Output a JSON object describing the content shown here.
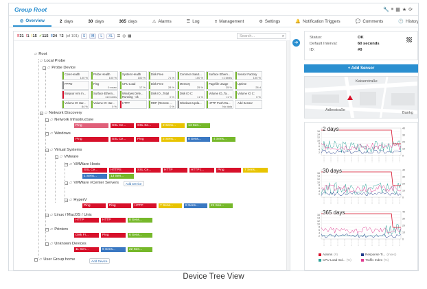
{
  "header": {
    "title": "Group Root",
    "icons": [
      "wrench-icon",
      "pause-icon",
      "grid-icon",
      "star-icon",
      "refresh-icon"
    ]
  },
  "tabs": [
    {
      "key": "overview",
      "label": "Overview",
      "icon": "globe-icon",
      "active": true
    },
    {
      "key": "2days",
      "num": "2",
      "label": "days"
    },
    {
      "key": "30days",
      "num": "30",
      "label": "days"
    },
    {
      "key": "365days",
      "num": "365",
      "label": "days"
    },
    {
      "key": "alarms",
      "label": "Alarms",
      "icon": "alarm-icon"
    },
    {
      "key": "log",
      "label": "Log",
      "icon": "log-icon"
    },
    {
      "key": "management",
      "label": "Management",
      "icon": "sliders-icon"
    },
    {
      "key": "settings",
      "label": "Settings",
      "icon": "gear-icon"
    },
    {
      "key": "notifications",
      "label": "Notification Triggers",
      "icon": "bell-icon"
    },
    {
      "key": "comments",
      "label": "Comments",
      "icon": "comment-icon"
    },
    {
      "key": "history",
      "label": "History",
      "icon": "history-icon"
    }
  ],
  "toolbar": {
    "counts": [
      {
        "value": "31",
        "color": "#d7102a",
        "mark": "‼"
      },
      {
        "value": "1",
        "color": "#e0607a",
        "mark": "!"
      },
      {
        "value": "15",
        "color": "#e8c400",
        "mark": "!"
      },
      {
        "value": "115",
        "color": "#76b82a",
        "mark": "✓"
      },
      {
        "value": "24",
        "color": "#3a78c2",
        "mark": "‼"
      },
      {
        "value": "2",
        "color": "#888888",
        "mark": "?"
      }
    ],
    "total": "(of 191)",
    "sizes": [
      "S",
      "M",
      "L",
      "XL"
    ],
    "search_placeholder": "Search..."
  },
  "tree": {
    "root": "Root",
    "local_probe": "Local Probe",
    "probe_device": "Probe Device",
    "tiles": [
      {
        "name": "Core Health",
        "value": "100 %",
        "status": "ok"
      },
      {
        "name": "Probe Health",
        "value": "100 %",
        "status": "ok"
      },
      {
        "name": "System Health",
        "value": "100 %",
        "status": "ok"
      },
      {
        "name": "Disk Free",
        "value": "71 %",
        "status": "ok"
      },
      {
        "name": "Common SaaS...",
        "value": "100 %",
        "status": "ok"
      },
      {
        "name": "Surface Ethern...",
        "value": "<1 kbit/s",
        "status": "ok"
      },
      {
        "name": "Sensor Factory",
        "value": "100 %",
        "status": "ok"
      },
      {
        "name": "PPPD",
        "value": "",
        "status": "unk"
      },
      {
        "name": "Ping",
        "value": "0 msec",
        "status": "ok"
      },
      {
        "name": "CPU Load",
        "value": "17 %",
        "status": "ok"
      },
      {
        "name": "Disk Free",
        "value": "28 %",
        "status": "ok"
      },
      {
        "name": "Memory",
        "value": "25 %",
        "status": "ok"
      },
      {
        "name": "Pagefile Usage",
        "value": "25 %",
        "status": "ok"
      },
      {
        "name": "Uptime",
        "value": "28 d",
        "status": "ok"
      },
      {
        "name": "Bonjour Arm In...",
        "value": "",
        "status": "bad"
      },
      {
        "name": "Surface Ethern...",
        "value": "110 kbit/s",
        "status": "ok"
      },
      {
        "name": "Windows Defe... Running - ok",
        "value": "",
        "status": "ok"
      },
      {
        "name": "Disk IO _Total",
        "value": "0 %",
        "status": "ok"
      },
      {
        "name": "Disk IO C:",
        "value": "<1 %",
        "status": "ok"
      },
      {
        "name": "Volume IO_Ta...",
        "value": "<1 %",
        "status": "ok"
      },
      {
        "name": "Volume IO C:",
        "value": "0 %",
        "status": "ok"
      },
      {
        "name": "Volume IO Har...",
        "value": "84 %",
        "status": "ok"
      },
      {
        "name": "Volume IO Har...",
        "value": "0 %",
        "status": "ok"
      },
      {
        "name": "HTTP",
        "value": "",
        "status": "bad"
      },
      {
        "name": "RDP (Remote ...",
        "value": "0 %",
        "status": "ok"
      },
      {
        "name": "Windows Upda...",
        "value": "",
        "status": "unk"
      },
      {
        "name": "HTTP Push Da...",
        "value": "No data",
        "status": "ok"
      },
      {
        "name": "Add Sensor",
        "value": "",
        "status": "add"
      }
    ],
    "network_discovery": "Network Discovery",
    "groups": [
      {
        "key": "netinfra",
        "label": "Network Infrastructure",
        "pills": [
          {
            "text": "Ping",
            "color": "pink",
            "w": 50
          },
          {
            "text": "SSL Ce...",
            "color": "red",
            "w": 34
          },
          {
            "text": "SSL Se...",
            "color": "red",
            "w": 34
          },
          {
            "text": "2 Sens...",
            "color": "yellow",
            "w": 34
          },
          {
            "text": "14 Sen...",
            "color": "green",
            "w": 34
          }
        ]
      },
      {
        "key": "windows",
        "label": "Windows",
        "pills": [
          {
            "text": "Ping",
            "color": "red",
            "w": 50
          },
          {
            "text": "SSL Ce...",
            "color": "red",
            "w": 34
          },
          {
            "text": "Ping",
            "color": "red",
            "w": 34
          },
          {
            "text": "2 Sens...",
            "color": "yellow",
            "w": 34
          },
          {
            "text": "8 Sens...",
            "color": "blue",
            "w": 34
          },
          {
            "text": "4 Sens...",
            "color": "green",
            "w": 34
          }
        ]
      },
      {
        "key": "virtual",
        "label": "Virtual Systems"
      },
      {
        "key": "vmware",
        "label": "VMware"
      },
      {
        "key": "vmhosts",
        "label": "VMWare Hosts",
        "pills": [
          {
            "text": "SSL Ce...",
            "color": "red",
            "w": 36
          },
          {
            "text": "HTTPS",
            "color": "red",
            "w": 36
          },
          {
            "text": "SSL Ce...",
            "color": "red",
            "w": 36
          },
          {
            "text": "HTTP",
            "color": "red",
            "w": 36
          },
          {
            "text": "HTTP (...",
            "color": "red",
            "w": 36
          },
          {
            "text": "Ping",
            "color": "red",
            "w": 36
          },
          {
            "text": "7 Sens...",
            "color": "yellow",
            "w": 36
          }
        ],
        "pills2": [
          {
            "text": "1 Sens...",
            "color": "blue",
            "w": 36
          },
          {
            "text": "13 Sen...",
            "color": "green",
            "w": 36
          }
        ]
      },
      {
        "key": "vcenter",
        "label": "VMWare vCenter Servers",
        "add": "Add Device"
      },
      {
        "key": "hyperv",
        "label": "HyperV",
        "pills": [
          {
            "text": "Ping",
            "color": "red",
            "w": 34
          },
          {
            "text": "Ping",
            "color": "red",
            "w": 34
          },
          {
            "text": "HTTP",
            "color": "red",
            "w": 34
          },
          {
            "text": "7 Sens...",
            "color": "yellow",
            "w": 34
          },
          {
            "text": "8 Sens...",
            "color": "blue",
            "w": 34
          },
          {
            "text": "21 Sen...",
            "color": "green",
            "w": 34
          }
        ]
      },
      {
        "key": "linux",
        "label": "Linux / MacOS / Unix",
        "pills": [
          {
            "text": "HTTP",
            "color": "red",
            "w": 36
          },
          {
            "text": "HTTP",
            "color": "red",
            "w": 36
          },
          {
            "text": "8 Sens...",
            "color": "green",
            "w": 36
          }
        ]
      },
      {
        "key": "printers",
        "label": "Printers",
        "pills": [
          {
            "text": "Disk Fr...",
            "color": "red",
            "w": 36
          },
          {
            "text": "Ping",
            "color": "red",
            "w": 36
          },
          {
            "text": "6 Sens...",
            "color": "green",
            "w": 36
          }
        ]
      },
      {
        "key": "unknown",
        "label": "Unknown Devices",
        "pills": [
          {
            "text": "11 Sen...",
            "color": "red",
            "w": 36
          },
          {
            "text": "6 Sens...",
            "color": "blue",
            "w": 36
          },
          {
            "text": "22 Sen...",
            "color": "green",
            "w": 36
          }
        ]
      },
      {
        "key": "userhome",
        "label": "User Group home",
        "add": "Add Device"
      }
    ],
    "add_device": "Add Device"
  },
  "info": {
    "status_key": "Status:",
    "status_val": "OK",
    "interval_key": "Default Interval:",
    "interval_val": "60 seconds",
    "id_key": "ID:",
    "id_val": "#0"
  },
  "add_sensor": "+ Add Sensor",
  "map": {
    "streets": [
      "Kaiserstraße",
      "Adlerstraße",
      "Bankg"
    ]
  },
  "charts": [
    {
      "title": "2 days"
    },
    {
      "title": "30 days"
    },
    {
      "title": "365 days"
    }
  ],
  "legend": [
    {
      "label": "Alarms",
      "unit": "(#)",
      "color": "#d7102a"
    },
    {
      "label": "Response Ti...",
      "unit": "(msec)",
      "color": "#1f3a8a"
    },
    {
      "label": "CPU Load Ind...",
      "unit": "(%)",
      "color": "#2aa198"
    },
    {
      "label": "Traffic Index",
      "unit": "(%)",
      "color": "#e03a8f"
    }
  ],
  "caption": "Device Tree View",
  "chart_data": {
    "type": "line",
    "title": "",
    "series": [
      {
        "name": "Alarms"
      },
      {
        "name": "Response Ti..."
      },
      {
        "name": "CPU Load Ind..."
      },
      {
        "name": "Traffic Index"
      }
    ],
    "yticks_left": [
      "2",
      "4",
      "6",
      "8",
      "10",
      "12",
      "14",
      "16"
    ],
    "yticks_right": [
      "0",
      "10",
      "20",
      "30",
      "40"
    ]
  }
}
